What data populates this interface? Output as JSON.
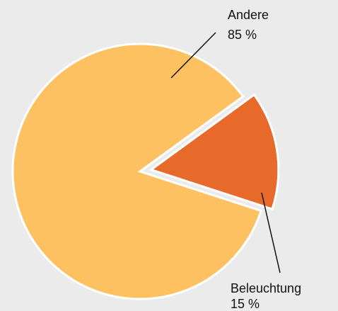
{
  "chart_data": {
    "type": "pie",
    "categories": [
      "Andere",
      "Beleuchtung"
    ],
    "values": [
      85,
      15
    ],
    "value_labels": [
      "85 %",
      "15 %"
    ],
    "colors": [
      "#fdc162",
      "#e86a2a"
    ],
    "exploded": [
      false,
      true
    ]
  }
}
